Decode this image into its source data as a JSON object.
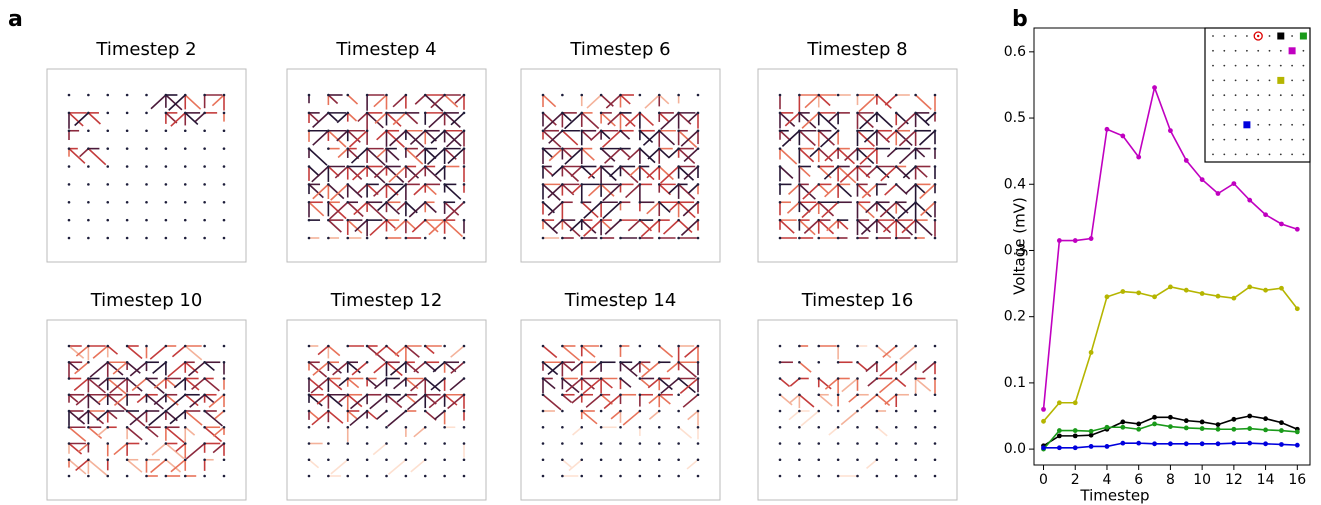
{
  "panel_a": {
    "label": "a",
    "titles": [
      "Timestep 2",
      "Timestep 4",
      "Timestep 6",
      "Timestep 8",
      "Timestep 10",
      "Timestep 12",
      "Timestep 14",
      "Timestep 16"
    ]
  },
  "chart_data": {
    "type": "line",
    "label": "b",
    "x_label": "Timestep",
    "y_label": "Voltage (mV)",
    "x": [
      0,
      1,
      2,
      3,
      4,
      5,
      6,
      7,
      8,
      9,
      10,
      11,
      12,
      13,
      14,
      15,
      16
    ],
    "series": [
      {
        "color": "#c000c0",
        "values": [
          0.06,
          0.315,
          0.315,
          0.318,
          0.483,
          0.473,
          0.441,
          0.546,
          0.481,
          0.436,
          0.407,
          0.386,
          0.401,
          0.376,
          0.354,
          0.34,
          0.332
        ]
      },
      {
        "color": "#b5b500",
        "values": [
          0.042,
          0.07,
          0.07,
          0.146,
          0.23,
          0.238,
          0.236,
          0.23,
          0.245,
          0.24,
          0.235,
          0.231,
          0.228,
          0.245,
          0.24,
          0.243,
          0.212
        ]
      },
      {
        "color": "#000000",
        "values": [
          0.005,
          0.02,
          0.02,
          0.021,
          0.03,
          0.041,
          0.038,
          0.048,
          0.048,
          0.043,
          0.041,
          0.037,
          0.045,
          0.05,
          0.046,
          0.04,
          0.03
        ]
      },
      {
        "color": "#1a9a1a",
        "values": [
          0.0,
          0.028,
          0.028,
          0.027,
          0.033,
          0.033,
          0.03,
          0.038,
          0.034,
          0.032,
          0.031,
          0.03,
          0.03,
          0.031,
          0.029,
          0.028,
          0.026
        ]
      },
      {
        "color": "#0000dd",
        "values": [
          0.002,
          0.002,
          0.002,
          0.004,
          0.004,
          0.009,
          0.009,
          0.008,
          0.008,
          0.008,
          0.008,
          0.008,
          0.009,
          0.009,
          0.008,
          0.007,
          0.006
        ]
      }
    ],
    "xlim": [
      -0.6,
      16.8
    ],
    "ylim": [
      -0.024,
      0.636
    ],
    "xticks": [
      0,
      2,
      4,
      6,
      8,
      10,
      12,
      14,
      16
    ],
    "yticks": [
      {
        "value": 0,
        "label": "0.0"
      },
      0.1,
      0.2,
      0.3,
      0.4,
      0.5,
      0.6
    ]
  }
}
